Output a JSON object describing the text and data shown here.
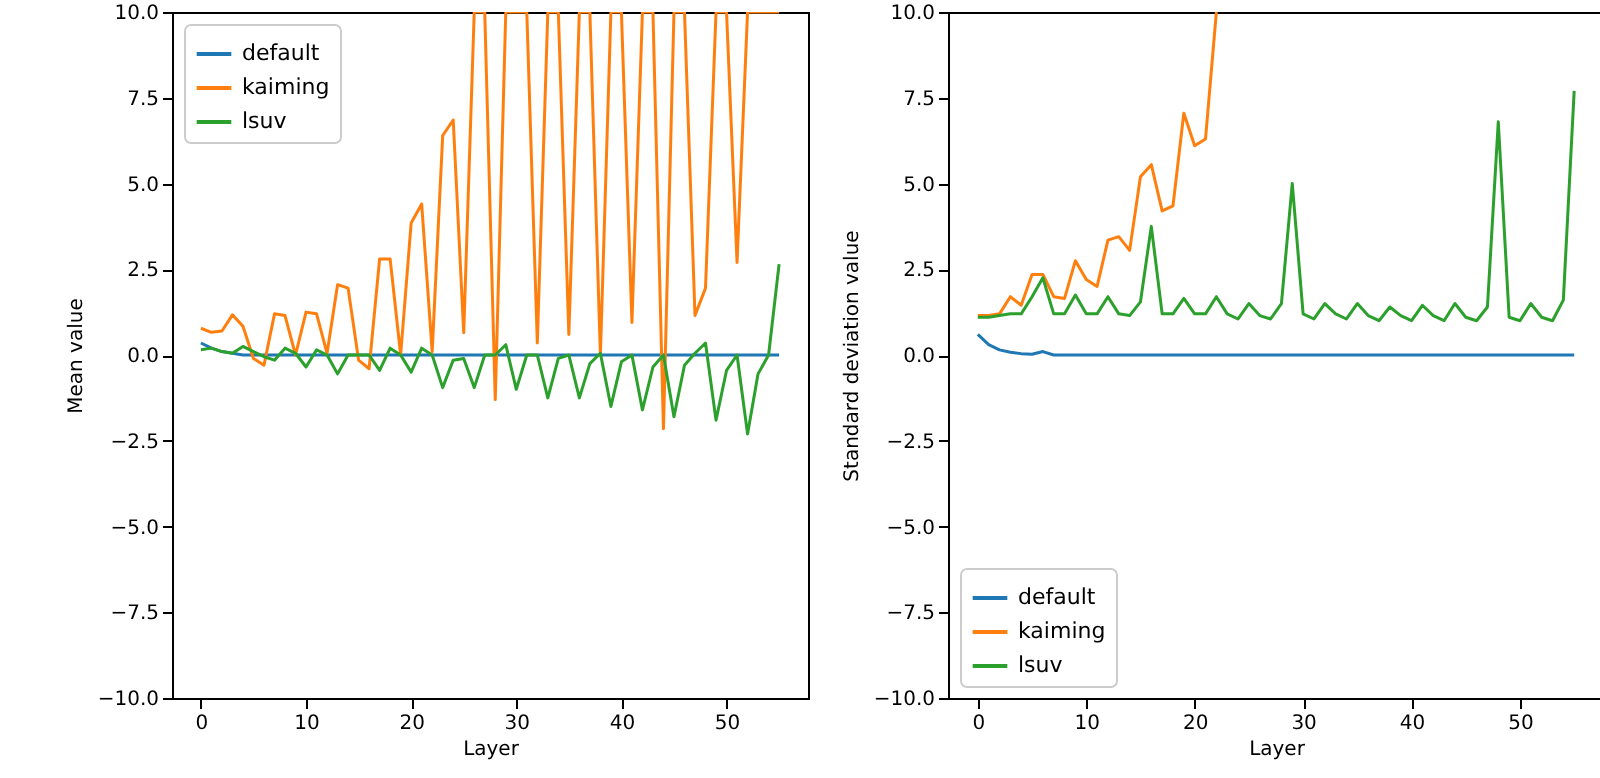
{
  "chart_data": [
    {
      "type": "line",
      "xlabel": "Layer",
      "ylabel": "Mean value",
      "x": [
        0,
        1,
        2,
        3,
        4,
        5,
        6,
        7,
        8,
        9,
        10,
        11,
        12,
        13,
        14,
        15,
        16,
        17,
        18,
        19,
        20,
        21,
        22,
        23,
        24,
        25,
        26,
        27,
        28,
        29,
        30,
        31,
        32,
        33,
        34,
        35,
        36,
        37,
        38,
        39,
        40,
        41,
        42,
        43,
        44,
        45,
        46,
        47,
        48,
        49,
        50,
        51,
        52,
        53,
        54,
        55
      ],
      "xlim": [
        -2.75,
        57.75
      ],
      "xticks": [
        0,
        10,
        20,
        30,
        40,
        50
      ],
      "ylim": [
        -10,
        10
      ],
      "yticks": [
        {
          "value": -10,
          "label": "−10.0"
        },
        {
          "value": -7.5,
          "label": "−7.5"
        },
        {
          "value": -5,
          "label": "−5.0"
        },
        {
          "value": -2.5,
          "label": "−2.5"
        },
        {
          "value": 0,
          "label": "0.0"
        },
        {
          "value": 2.5,
          "label": "2.5"
        },
        {
          "value": 5,
          "label": "5.0"
        },
        {
          "value": 7.5,
          "label": "7.5"
        },
        {
          "value": 10,
          "label": "10.0"
        }
      ],
      "legend": "top left",
      "grid": false,
      "series": [
        {
          "name": "default",
          "color": "#1f77b4",
          "values": [
            0.35,
            0.2,
            0.1,
            0.05,
            0,
            0,
            0,
            0,
            0,
            0,
            0,
            0,
            0,
            0,
            0,
            0,
            0,
            0,
            0,
            0,
            0,
            0,
            0,
            0,
            0,
            0,
            0,
            0,
            0,
            0,
            0,
            0,
            0,
            0,
            0,
            0,
            0,
            0,
            0,
            0,
            0,
            0,
            0,
            0,
            0,
            0,
            0,
            0,
            0,
            0,
            0,
            0,
            0,
            0,
            0,
            0
          ]
        },
        {
          "name": "kaiming",
          "color": "#ff7f0e",
          "values": [
            0.78,
            0.66,
            0.7,
            1.17,
            0.84,
            -0.1,
            -0.3,
            1.2,
            1.15,
            0.0,
            1.25,
            1.2,
            0.05,
            2.05,
            1.95,
            -0.15,
            -0.4,
            2.8,
            2.8,
            0.0,
            3.85,
            4.4,
            0.1,
            6.4,
            6.85,
            0.65,
            10,
            10,
            -1.3,
            10,
            10,
            10,
            0.35,
            10,
            10,
            0.6,
            10,
            10,
            0.0,
            10,
            10,
            0.95,
            10,
            10,
            -2.15,
            10,
            10,
            1.15,
            1.95,
            10,
            10,
            2.7,
            10,
            10,
            10,
            10
          ]
        },
        {
          "name": "lsuv",
          "color": "#2ca02c",
          "values": [
            0.15,
            0.2,
            0.1,
            0.05,
            0.25,
            0.1,
            -0.05,
            -0.15,
            0.2,
            0.05,
            -0.35,
            0.15,
            0,
            -0.55,
            0,
            0,
            0,
            -0.45,
            0.2,
            0,
            -0.5,
            0.2,
            0,
            -0.95,
            -0.15,
            -0.1,
            -0.95,
            0,
            0,
            0.3,
            -1.0,
            0,
            0,
            -1.25,
            -0.1,
            0,
            -1.25,
            -0.25,
            0.05,
            -1.5,
            -0.2,
            0,
            -1.6,
            -0.35,
            0,
            -1.8,
            -0.3,
            0.05,
            0.35,
            -1.9,
            -0.45,
            0,
            -2.3,
            -0.55,
            0,
            2.65
          ]
        }
      ]
    },
    {
      "type": "line",
      "xlabel": "Layer",
      "ylabel": "Standard deviation value",
      "x": [
        0,
        1,
        2,
        3,
        4,
        5,
        6,
        7,
        8,
        9,
        10,
        11,
        12,
        13,
        14,
        15,
        16,
        17,
        18,
        19,
        20,
        21,
        22,
        23,
        24,
        25,
        26,
        27,
        28,
        29,
        30,
        31,
        32,
        33,
        34,
        35,
        36,
        37,
        38,
        39,
        40,
        41,
        42,
        43,
        44,
        45,
        46,
        47,
        48,
        49,
        50,
        51,
        52,
        53,
        54,
        55
      ],
      "xlim": [
        -2.75,
        57.75
      ],
      "xticks": [
        0,
        10,
        20,
        30,
        40,
        50
      ],
      "ylim": [
        -10,
        10
      ],
      "yticks": [
        {
          "value": -10,
          "label": "−10.0"
        },
        {
          "value": -7.5,
          "label": "−7.5"
        },
        {
          "value": -5,
          "label": "−5.0"
        },
        {
          "value": -2.5,
          "label": "−2.5"
        },
        {
          "value": 0,
          "label": "0.0"
        },
        {
          "value": 2.5,
          "label": "2.5"
        },
        {
          "value": 5,
          "label": "5.0"
        },
        {
          "value": 7.5,
          "label": "7.5"
        },
        {
          "value": 10,
          "label": "10.0"
        }
      ],
      "legend": "bottom left",
      "grid": false,
      "series": [
        {
          "name": "default",
          "color": "#1f77b4",
          "values": [
            0.6,
            0.3,
            0.15,
            0.08,
            0.04,
            0.02,
            0.1,
            0,
            0,
            0,
            0,
            0,
            0,
            0,
            0,
            0,
            0,
            0,
            0,
            0,
            0,
            0,
            0,
            0,
            0,
            0,
            0,
            0,
            0,
            0,
            0,
            0,
            0,
            0,
            0,
            0,
            0,
            0,
            0,
            0,
            0,
            0,
            0,
            0,
            0,
            0,
            0,
            0,
            0,
            0,
            0,
            0,
            0,
            0,
            0,
            0
          ]
        },
        {
          "name": "kaiming",
          "color": "#ff7f0e",
          "values": [
            1.15,
            1.15,
            1.2,
            1.7,
            1.45,
            2.35,
            2.35,
            1.7,
            1.65,
            2.75,
            2.2,
            2.0,
            3.35,
            3.45,
            3.05,
            5.2,
            5.55,
            4.2,
            4.35,
            7.05,
            6.1,
            6.3,
            10,
            null,
            null,
            null,
            null,
            null,
            null,
            null,
            null,
            null,
            null,
            null,
            null,
            null,
            null,
            null,
            null,
            null,
            null,
            null,
            null,
            null,
            null,
            null,
            null,
            null,
            null,
            null,
            null,
            null,
            null,
            null,
            null,
            null
          ]
        },
        {
          "name": "lsuv",
          "color": "#2ca02c",
          "values": [
            1.1,
            1.1,
            1.15,
            1.2,
            1.2,
            1.7,
            2.25,
            1.2,
            1.2,
            1.75,
            1.2,
            1.2,
            1.7,
            1.2,
            1.15,
            1.55,
            3.75,
            1.2,
            1.2,
            1.65,
            1.2,
            1.2,
            1.7,
            1.2,
            1.05,
            1.5,
            1.15,
            1.05,
            1.5,
            5.0,
            1.2,
            1.05,
            1.5,
            1.2,
            1.05,
            1.5,
            1.15,
            1.0,
            1.4,
            1.15,
            1.0,
            1.45,
            1.15,
            1.0,
            1.5,
            1.1,
            1.0,
            1.4,
            6.8,
            1.1,
            1.0,
            1.5,
            1.1,
            1.0,
            1.6,
            7.7
          ]
        }
      ]
    }
  ]
}
